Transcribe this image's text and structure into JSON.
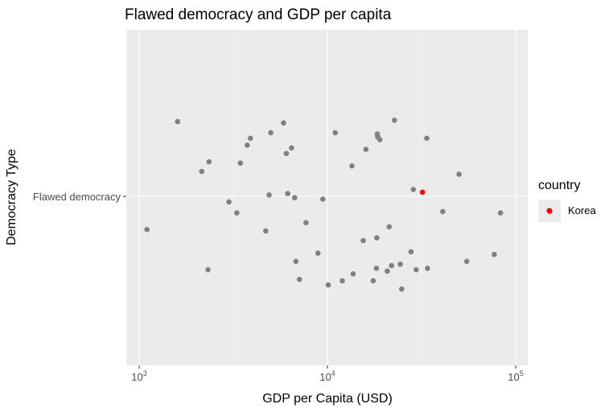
{
  "chart_data": {
    "type": "scatter",
    "title": "Flawed democracy and GDP per capita",
    "xlabel": "GDP per Capita (USD)",
    "ylabel": "Democracy Type",
    "x_scale": "log10",
    "xlim": [
      1000,
      100000
    ],
    "x_ticks": [
      {
        "value": 1000,
        "base": "10",
        "exp": "3"
      },
      {
        "value": 10000,
        "base": "10",
        "exp": "4"
      },
      {
        "value": 100000,
        "base": "10",
        "exp": "5"
      }
    ],
    "y_categories": [
      "Flawed democracy"
    ],
    "jitter": "vertical jitter around the single category",
    "background": "#ebebeb",
    "grid": true,
    "legend": {
      "title": "country",
      "position": "right",
      "entries": [
        {
          "label": "Korea",
          "color": "#ff0000"
        }
      ]
    },
    "points_color": "#808080",
    "series": [
      {
        "name": "",
        "color": "#808080",
        "points": [
          {
            "x": 1600,
            "jitter": 0.54
          },
          {
            "x": 1100,
            "jitter": -0.24
          },
          {
            "x": 2150,
            "jitter": 0.18
          },
          {
            "x": 2350,
            "jitter": 0.25
          },
          {
            "x": 2320,
            "jitter": -0.53
          },
          {
            "x": 3000,
            "jitter": -0.04
          },
          {
            "x": 3300,
            "jitter": -0.12
          },
          {
            "x": 3450,
            "jitter": 0.24
          },
          {
            "x": 3750,
            "jitter": 0.37
          },
          {
            "x": 3900,
            "jitter": 0.42
          },
          {
            "x": 4700,
            "jitter": -0.25
          },
          {
            "x": 4900,
            "jitter": 0.01
          },
          {
            "x": 5000,
            "jitter": 0.46
          },
          {
            "x": 5850,
            "jitter": 0.53
          },
          {
            "x": 6050,
            "jitter": 0.31
          },
          {
            "x": 6150,
            "jitter": 0.02
          },
          {
            "x": 6450,
            "jitter": 0.35
          },
          {
            "x": 6700,
            "jitter": -0.01
          },
          {
            "x": 6800,
            "jitter": -0.47
          },
          {
            "x": 7100,
            "jitter": -0.6
          },
          {
            "x": 7700,
            "jitter": -0.19
          },
          {
            "x": 8900,
            "jitter": -0.41
          },
          {
            "x": 9450,
            "jitter": -0.02
          },
          {
            "x": 10100,
            "jitter": -0.64
          },
          {
            "x": 11000,
            "jitter": 0.46
          },
          {
            "x": 12000,
            "jitter": -0.61
          },
          {
            "x": 13500,
            "jitter": 0.22
          },
          {
            "x": 13700,
            "jitter": -0.56
          },
          {
            "x": 15500,
            "jitter": -0.32
          },
          {
            "x": 16000,
            "jitter": 0.34
          },
          {
            "x": 17500,
            "jitter": -0.61
          },
          {
            "x": 18200,
            "jitter": -0.52
          },
          {
            "x": 18300,
            "jitter": -0.3
          },
          {
            "x": 18400,
            "jitter": 0.45
          },
          {
            "x": 18500,
            "jitter": 0.43
          },
          {
            "x": 19000,
            "jitter": 0.41
          },
          {
            "x": 20800,
            "jitter": -0.54
          },
          {
            "x": 21300,
            "jitter": -0.22
          },
          {
            "x": 21900,
            "jitter": -0.5
          },
          {
            "x": 22700,
            "jitter": 0.55
          },
          {
            "x": 24400,
            "jitter": -0.49
          },
          {
            "x": 24800,
            "jitter": -0.67
          },
          {
            "x": 27800,
            "jitter": -0.4
          },
          {
            "x": 28600,
            "jitter": 0.05
          },
          {
            "x": 29600,
            "jitter": -0.53
          },
          {
            "x": 33700,
            "jitter": 0.42
          },
          {
            "x": 34000,
            "jitter": -0.52
          },
          {
            "x": 41000,
            "jitter": -0.11
          },
          {
            "x": 50000,
            "jitter": 0.16
          },
          {
            "x": 55000,
            "jitter": -0.47
          },
          {
            "x": 77000,
            "jitter": -0.42
          },
          {
            "x": 83000,
            "jitter": -0.12
          }
        ]
      },
      {
        "name": "Korea",
        "color": "#ff0000",
        "points": [
          {
            "x": 32000,
            "jitter": 0.03
          }
        ]
      }
    ]
  }
}
